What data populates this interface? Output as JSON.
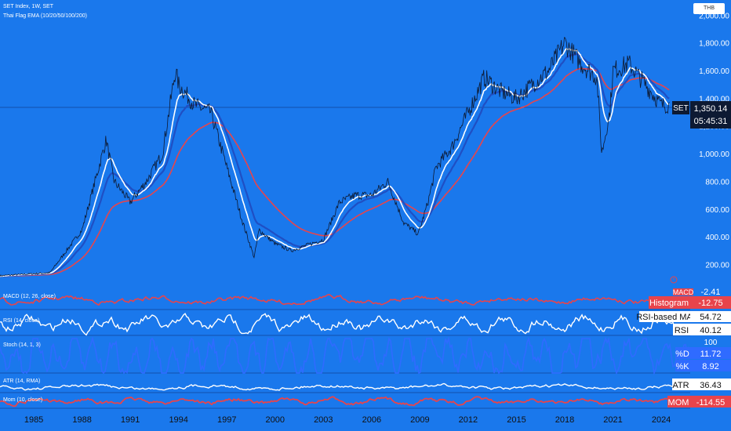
{
  "header": {
    "title": "SET Index, 1W, SET",
    "indicator": "Thai Flag EMA (10/20/50/100/200)",
    "currency": "THB"
  },
  "colors": {
    "background": "#1a78ec",
    "ema_fast": "#ffffff",
    "ema_mid": "#1f4fc4",
    "ema_slow": "#e8444b",
    "price": "#0d1a33",
    "macd": "#e8444b",
    "rsi": "#ffffff",
    "stoch": "#2f6bff",
    "atr": "#ffffff",
    "mom": "#e8444b"
  },
  "chart_data": [
    {
      "type": "line",
      "series_label": "SET",
      "title": "SET Index, 1W, SET",
      "x": [
        1983,
        1986,
        1988,
        1989.5,
        1990,
        1991,
        1992,
        1993,
        1993.8,
        1994,
        1995,
        1996,
        1997,
        1998,
        1998.7,
        1999,
        2000,
        2001,
        2002,
        2003,
        2004,
        2005,
        2006,
        2007,
        2008,
        2008.9,
        2009.5,
        2010,
        2011,
        2012,
        2013,
        2014,
        2015,
        2016,
        2017,
        2018,
        2019,
        2020,
        2020.3,
        2020.8,
        2021,
        2022,
        2023,
        2024,
        2024.5
      ],
      "price": [
        120,
        140,
        450,
        1100,
        800,
        650,
        800,
        1000,
        1600,
        1500,
        1350,
        1300,
        900,
        500,
        250,
        450,
        350,
        300,
        340,
        380,
        650,
        700,
        700,
        800,
        500,
        420,
        650,
        900,
        1050,
        1300,
        1550,
        1450,
        1400,
        1500,
        1600,
        1800,
        1650,
        1550,
        1000,
        1300,
        1600,
        1650,
        1500,
        1350,
        1350
      ],
      "xlim": [
        1982.9,
        2025.8
      ],
      "ylim": [
        90,
        2030
      ],
      "yticks": [
        "2,000.00",
        "1,800.00",
        "1,600.00",
        "1,400.00",
        "1,200.00",
        "1,000.00",
        "800.00",
        "600.00",
        "400.00",
        "200.00"
      ],
      "xticks": [
        "1985",
        "1988",
        "1991",
        "1994",
        "1997",
        "2000",
        "2003",
        "2006",
        "2009",
        "2012",
        "2015",
        "2018",
        "2021",
        "2024"
      ],
      "last_price": "1,350.14",
      "countdown": "05:45:31"
    },
    {
      "type": "line",
      "title": "MACD (12, 26, close)",
      "badges": [
        {
          "label": "MACD",
          "value": "-2.41"
        },
        {
          "label": "Histogram",
          "value": "-12.75"
        }
      ]
    },
    {
      "type": "line",
      "title": "RSI (14, close)",
      "badges": [
        {
          "label": "RSI-based MA",
          "value": "54.72"
        },
        {
          "label": "RSI",
          "value": "40.12"
        }
      ]
    },
    {
      "type": "line",
      "title": "Stoch (14, 1, 3)",
      "scale_label": "100",
      "badges": [
        {
          "label": "%D",
          "value": "11.72"
        },
        {
          "label": "%K",
          "value": "8.92"
        }
      ]
    },
    {
      "type": "line",
      "title": "ATR (14, RMA)",
      "badges": [
        {
          "label": "ATR",
          "value": "36.43"
        }
      ]
    },
    {
      "type": "line",
      "title": "Mom (10, close)",
      "badges": [
        {
          "label": "MOM",
          "value": "-114.55"
        }
      ]
    }
  ]
}
